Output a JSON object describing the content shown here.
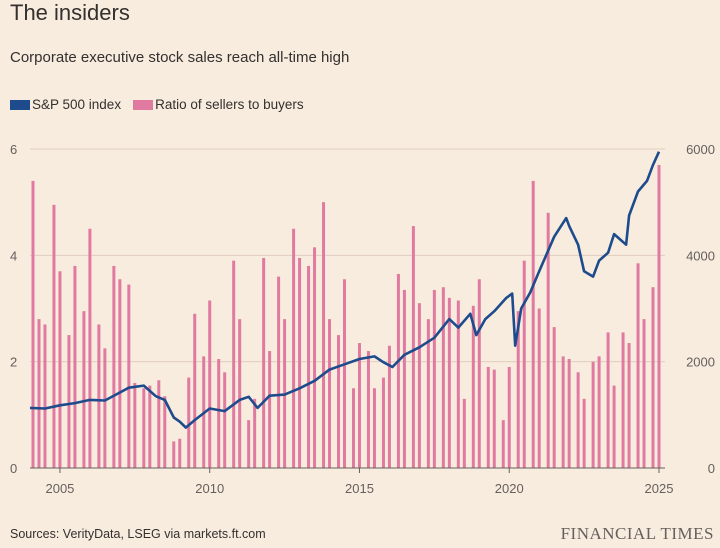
{
  "header": {
    "title": "The insiders",
    "subtitle": "Corporate executive stock sales reach all-time high"
  },
  "legend": {
    "items": [
      {
        "label": "S&P 500 index",
        "color": "#1e4b8c"
      },
      {
        "label": "Ratio of sellers to buyers",
        "color": "#e17aa0"
      }
    ]
  },
  "footer": {
    "source": "Sources: VerityData, LSEG via markets.ft.com",
    "brand": "FINANCIAL TIMES"
  },
  "chart_data": {
    "type": "bar+line",
    "x_range": [
      2004.0,
      2025.2
    ],
    "left_axis": {
      "ticks": [
        "0",
        "2",
        "4",
        "6"
      ],
      "range": [
        0,
        6
      ]
    },
    "right_axis": {
      "ticks": [
        "0",
        "2000",
        "4000",
        "6000"
      ],
      "range": [
        0,
        6000
      ]
    },
    "x_ticks": [
      "2005",
      "2010",
      "2015",
      "2020",
      "2025"
    ],
    "x_tick_values": [
      2005,
      2010,
      2015,
      2020,
      2025
    ],
    "grid": true,
    "bar_series": {
      "name": "Ratio of sellers to buyers",
      "axis": "left",
      "x": [
        2004.1,
        2004.3,
        2004.5,
        2004.8,
        2005.0,
        2005.3,
        2005.5,
        2005.8,
        2006.0,
        2006.3,
        2006.5,
        2006.8,
        2007.0,
        2007.3,
        2007.5,
        2007.8,
        2008.0,
        2008.3,
        2008.5,
        2008.8,
        2009.0,
        2009.3,
        2009.5,
        2009.8,
        2010.0,
        2010.3,
        2010.5,
        2010.8,
        2011.0,
        2011.3,
        2011.5,
        2011.8,
        2012.0,
        2012.3,
        2012.5,
        2012.8,
        2013.0,
        2013.3,
        2013.5,
        2013.8,
        2014.0,
        2014.3,
        2014.5,
        2014.8,
        2015.0,
        2015.3,
        2015.5,
        2015.8,
        2016.0,
        2016.3,
        2016.5,
        2016.8,
        2017.0,
        2017.3,
        2017.5,
        2017.8,
        2018.0,
        2018.3,
        2018.5,
        2018.8,
        2019.0,
        2019.3,
        2019.5,
        2019.8,
        2020.0,
        2020.3,
        2020.5,
        2020.8,
        2021.0,
        2021.3,
        2021.5,
        2021.8,
        2022.0,
        2022.3,
        2022.5,
        2022.8,
        2023.0,
        2023.3,
        2023.5,
        2023.8,
        2024.0,
        2024.3,
        2024.5,
        2024.8,
        2025.0
      ],
      "values": [
        5.4,
        2.8,
        2.7,
        4.95,
        3.7,
        2.5,
        3.8,
        2.95,
        4.5,
        2.7,
        2.25,
        3.8,
        3.55,
        3.45,
        1.6,
        1.5,
        1.55,
        1.65,
        1.35,
        0.5,
        0.55,
        1.7,
        2.9,
        2.1,
        3.15,
        2.05,
        1.8,
        3.9,
        2.8,
        0.9,
        1.3,
        3.95,
        2.2,
        3.6,
        2.8,
        4.5,
        3.95,
        3.8,
        4.15,
        5.0,
        2.8,
        2.5,
        3.55,
        1.5,
        2.35,
        2.2,
        1.5,
        1.7,
        2.3,
        3.65,
        3.35,
        4.55,
        3.1,
        2.8,
        3.35,
        3.4,
        3.2,
        3.15,
        1.3,
        3.05,
        3.55,
        1.9,
        1.85,
        0.9,
        1.9,
        2.95,
        3.9,
        5.4,
        3.0,
        4.8,
        2.65,
        2.1,
        2.05,
        1.8,
        1.3,
        2.0,
        2.1,
        2.55,
        1.55,
        2.55,
        2.35,
        3.85,
        2.8,
        3.4,
        5.7
      ]
    },
    "line_series": {
      "name": "S&P 500 index",
      "axis": "right",
      "x": [
        2004.0,
        2004.5,
        2005.0,
        2005.5,
        2006.0,
        2006.5,
        2007.0,
        2007.3,
        2007.8,
        2008.2,
        2008.5,
        2008.8,
        2009.0,
        2009.2,
        2009.5,
        2010.0,
        2010.5,
        2011.0,
        2011.3,
        2011.6,
        2012.0,
        2012.5,
        2013.0,
        2013.5,
        2014.0,
        2014.5,
        2015.0,
        2015.5,
        2015.8,
        2016.1,
        2016.5,
        2017.0,
        2017.5,
        2018.0,
        2018.3,
        2018.7,
        2018.9,
        2019.2,
        2019.5,
        2019.9,
        2020.1,
        2020.2,
        2020.4,
        2020.7,
        2021.0,
        2021.5,
        2021.9,
        2022.0,
        2022.3,
        2022.5,
        2022.8,
        2023.0,
        2023.3,
        2023.5,
        2023.9,
        2024.0,
        2024.3,
        2024.6,
        2024.8,
        2025.0
      ],
      "values": [
        1130,
        1120,
        1180,
        1220,
        1280,
        1270,
        1420,
        1510,
        1550,
        1350,
        1280,
        950,
        870,
        760,
        900,
        1120,
        1070,
        1280,
        1340,
        1130,
        1360,
        1380,
        1500,
        1640,
        1850,
        1950,
        2050,
        2100,
        1990,
        1900,
        2130,
        2270,
        2450,
        2800,
        2640,
        2900,
        2500,
        2800,
        2950,
        3200,
        3280,
        2300,
        3000,
        3300,
        3700,
        4350,
        4700,
        4550,
        4200,
        3700,
        3600,
        3900,
        4050,
        4400,
        4200,
        4750,
        5200,
        5400,
        5700,
        5950
      ]
    }
  }
}
